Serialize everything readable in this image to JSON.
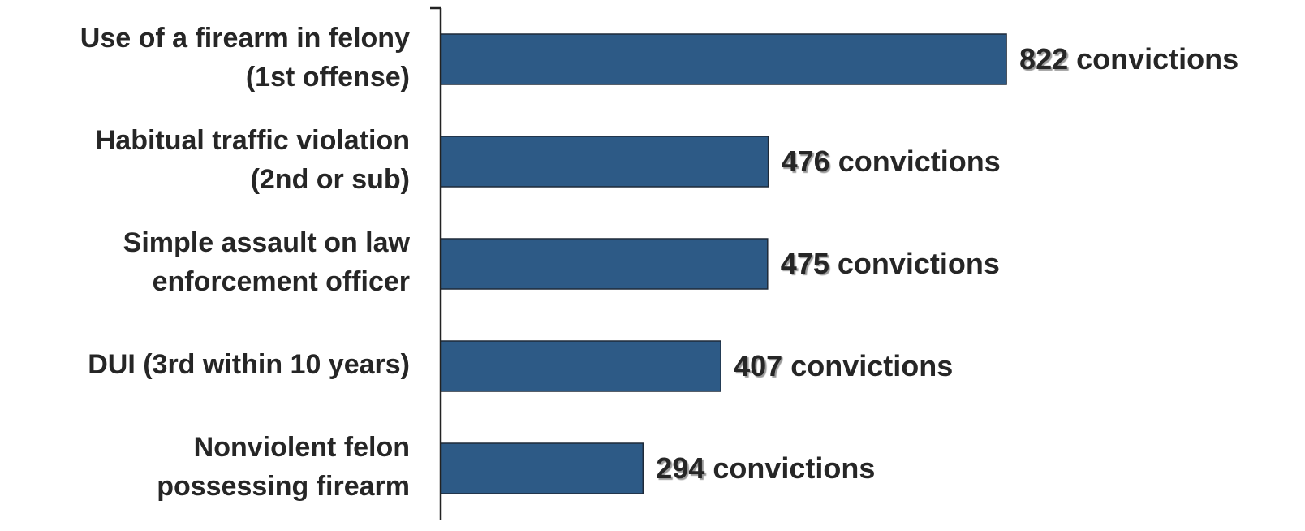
{
  "chart_data": {
    "type": "bar",
    "orientation": "horizontal",
    "categories": [
      "Use of a firearm in felony\n(1st offense)",
      "Habitual traffic violation\n(2nd or sub)",
      "Simple assault on law\nenforcement officer",
      "DUI (3rd within 10 years)",
      "Nonviolent felon\npossessing firearm"
    ],
    "values": [
      822,
      476,
      475,
      407,
      294
    ],
    "value_labels": [
      "822 convictions",
      "476 convictions",
      "475 convictions",
      "407 convictions",
      "294 convictions"
    ],
    "color": "#2d5a86",
    "xlim": [
      0,
      1000
    ]
  }
}
